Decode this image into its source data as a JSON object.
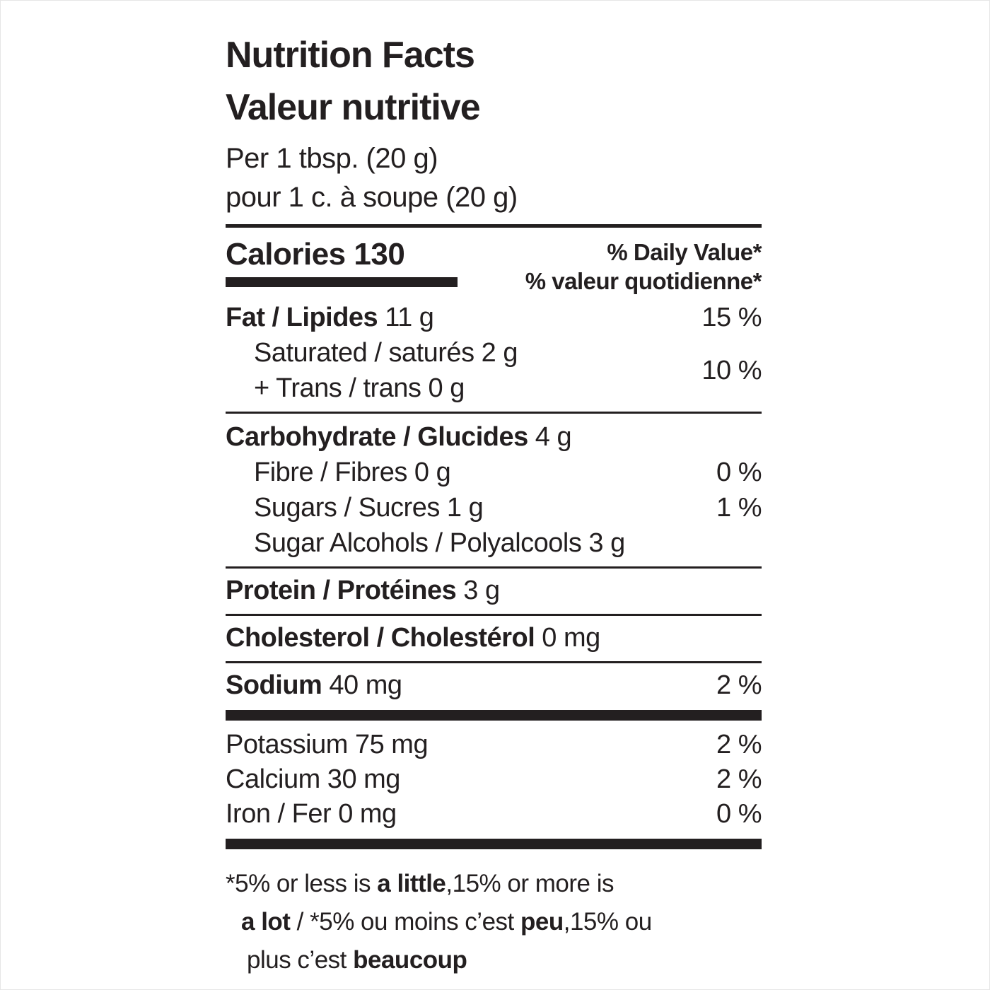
{
  "label": {
    "title_en": "Nutrition Facts",
    "title_fr": "Valeur nutritive",
    "serving_en": "Per 1 tbsp. (20 g)",
    "serving_fr": "pour 1 c. à soupe (20 g)",
    "calories_label": "Calories",
    "calories_value": "130",
    "dv_header_en": "% Daily Value*",
    "dv_header_fr": "% valeur quotidienne*",
    "ink_color": "#231f20"
  },
  "nutrients": {
    "fat": {
      "bold": "Fat / Lipides",
      "rest": " 11 g",
      "dv": "15 %"
    },
    "saturated_trans": {
      "line1": "Saturated / saturés 2 g",
      "line2": "+ Trans / trans 0 g",
      "dv": "10 %"
    },
    "carbohydrate": {
      "bold": "Carbohydrate / Glucides",
      "rest": " 4 g",
      "dv": ""
    },
    "fibre": {
      "text": "Fibre / Fibres 0 g",
      "dv": "0 %"
    },
    "sugars": {
      "text": "Sugars / Sucres 1 g",
      "dv": "1 %"
    },
    "sugar_alcohols": {
      "text": "Sugar Alcohols / Polyalcools 3 g",
      "dv": ""
    },
    "protein": {
      "bold": "Protein / Protéines",
      "rest": " 3 g"
    },
    "cholesterol": {
      "bold": "Cholesterol / Cholestérol",
      "rest": " 0 mg"
    },
    "sodium": {
      "bold": "Sodium",
      "rest": " 40 mg",
      "dv": "2 %"
    },
    "potassium": {
      "text": "Potassium 75 mg",
      "dv": "2 %"
    },
    "calcium": {
      "text": "Calcium 30 mg",
      "dv": "2 %"
    },
    "iron": {
      "text": "Iron / Fer 0 mg",
      "dv": "0 %"
    }
  },
  "footnote": {
    "l1_a": "*5% or less is ",
    "l1_b": "a little",
    "l1_c": ",15% or more is",
    "l2_a": "a lot",
    "l2_b": " / *5% ou moins c’est ",
    "l2_c": "peu",
    "l2_d": ",15% ou",
    "l3_a": "plus c’est ",
    "l3_b": "beaucoup"
  }
}
